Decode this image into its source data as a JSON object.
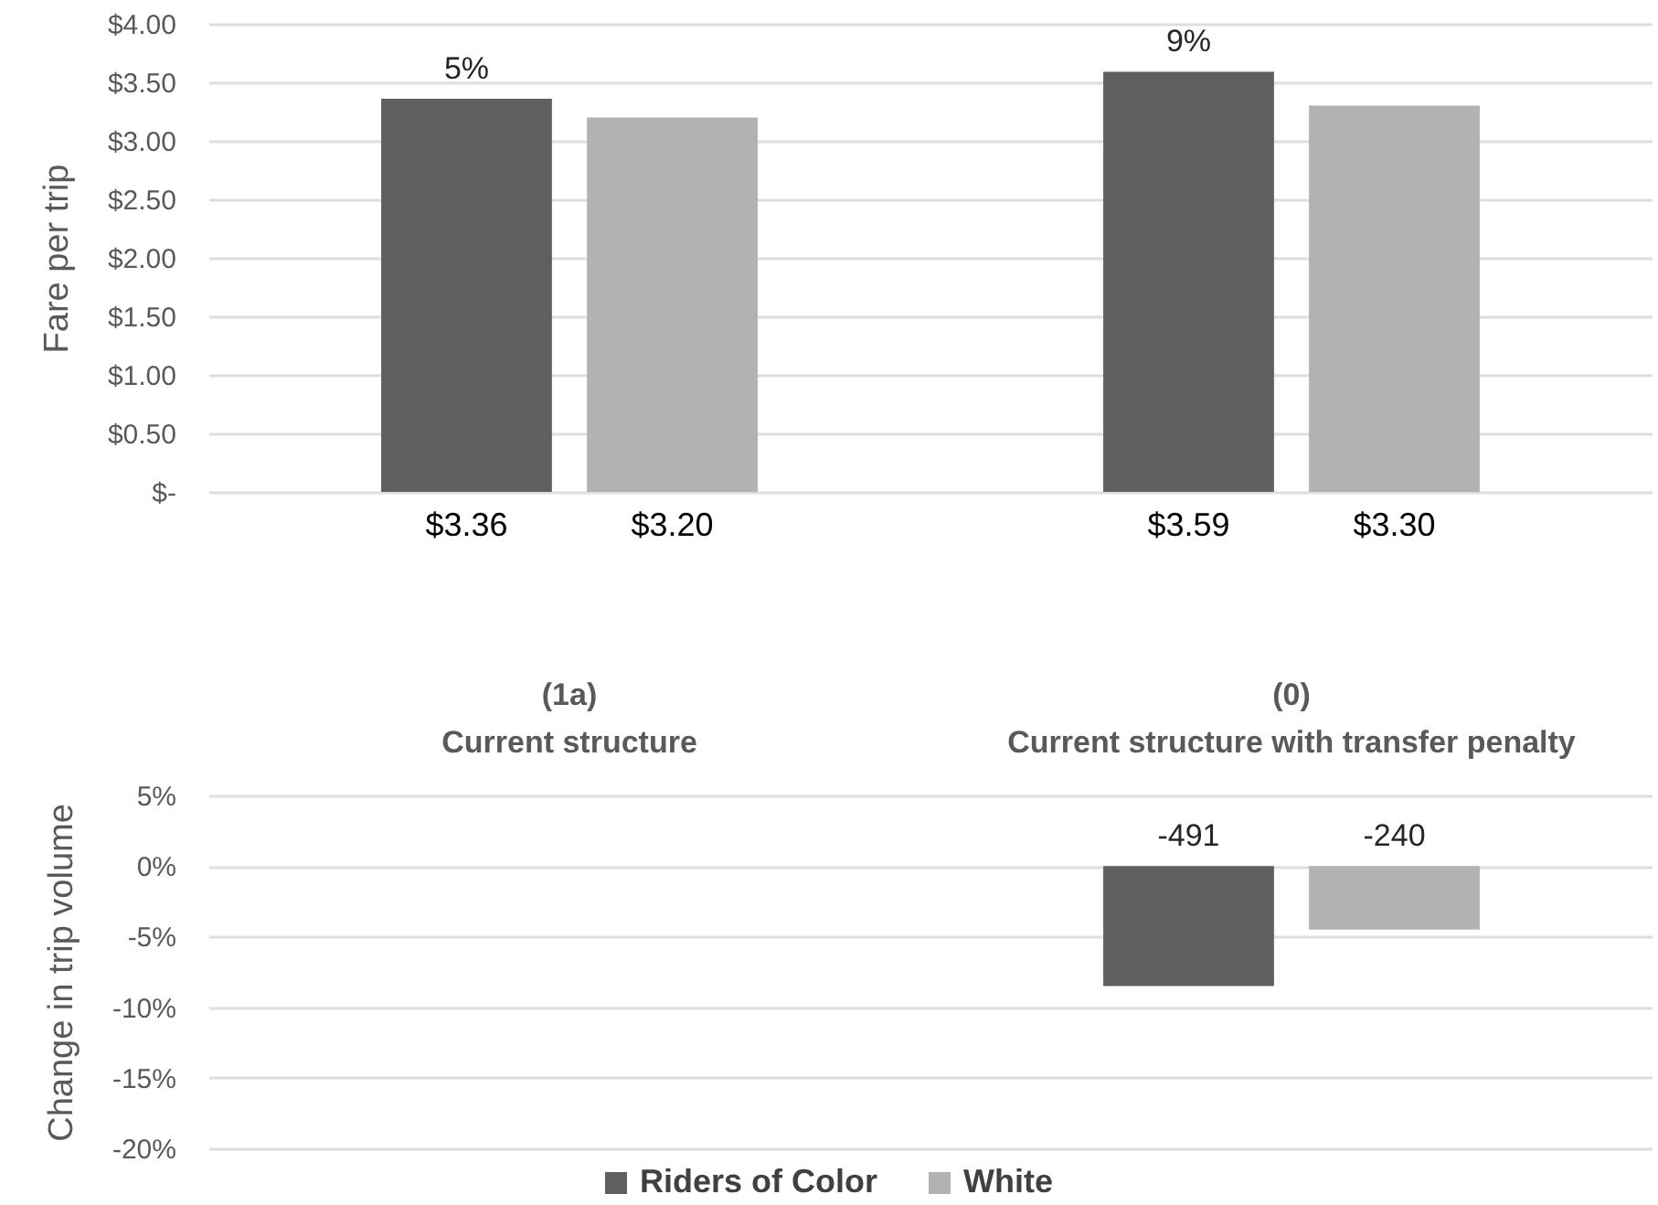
{
  "chart_data": [
    {
      "type": "bar",
      "categories": [
        null,
        null
      ],
      "series": [
        {
          "name": "Riders of Color",
          "color": "#5f5f5f",
          "values": [
            3.36,
            3.59
          ],
          "value_labels": [
            "$3.36",
            "$3.59"
          ]
        },
        {
          "name": "White",
          "color": "#b2b2b2",
          "values": [
            3.2,
            3.3
          ],
          "value_labels": [
            "$3.20",
            "$3.30"
          ]
        }
      ],
      "ylabel": "Fare per trip",
      "ylim": [
        0,
        4
      ],
      "yticks": [
        {
          "value": 0,
          "label": "$-"
        },
        {
          "value": 0.5,
          "label": "$0.50"
        },
        {
          "value": 1,
          "label": "$1.00"
        },
        {
          "value": 1.5,
          "label": "$1.50"
        },
        {
          "value": 2,
          "label": "$2.00"
        },
        {
          "value": 2.5,
          "label": "$2.50"
        },
        {
          "value": 3,
          "label": "$3.00"
        },
        {
          "value": 3.5,
          "label": "$3.50"
        },
        {
          "value": 4,
          "label": "$4.00"
        }
      ],
      "grid": "y",
      "legend": "bottom",
      "annotations": [
        {
          "text": "5%",
          "y": 3.36
        },
        {
          "text": "9%",
          "y": 3.59
        }
      ]
    },
    {
      "type": "bar",
      "categories": [
        "(1a)\nCurrent structure",
        "(0)\nCurrent structure with transfer penalty"
      ],
      "series": [
        {
          "name": "Riders of Color",
          "color": "#5f5f5f",
          "values": [
            null,
            -8.5
          ]
        },
        {
          "name": "White",
          "color": "#b2b2b2",
          "values": [
            null,
            -4.5
          ]
        }
      ],
      "ylabel": "Change in trip volume",
      "ylim": [
        -20,
        5
      ],
      "yticks": [
        {
          "value": -20,
          "label": "-20%"
        },
        {
          "value": -15,
          "label": "-15%"
        },
        {
          "value": -10,
          "label": "-10%"
        },
        {
          "value": -5,
          "label": "-5%"
        },
        {
          "value": 0,
          "label": "0%"
        },
        {
          "value": 5,
          "label": "5%"
        }
      ],
      "grid": "y",
      "legend": "bottom",
      "annotations": [
        {
          "text": "-491",
          "y": 0
        },
        {
          "text": "-240",
          "y": 0
        }
      ]
    }
  ]
}
